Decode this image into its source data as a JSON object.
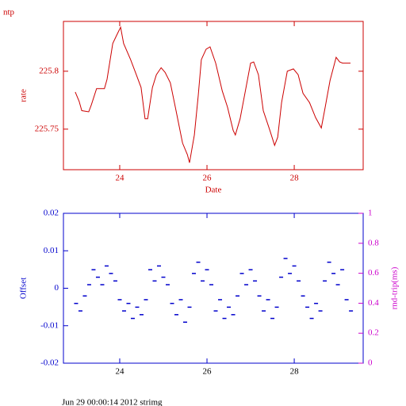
{
  "chart_data": [
    {
      "type": "line",
      "title": "ntp",
      "xlabel": "Date",
      "ylabel": "rate",
      "color": "#cc0000",
      "xlim": [
        22.71,
        29.58
      ],
      "xticks": [
        24,
        26,
        28
      ],
      "ylim": [
        225.715,
        225.843
      ],
      "yticks": [
        225.75,
        225.8
      ],
      "x": [
        22.98,
        23.07,
        23.13,
        23.29,
        23.35,
        23.47,
        23.65,
        23.71,
        23.84,
        23.93,
        24.02,
        24.09,
        24.25,
        24.38,
        24.49,
        24.58,
        24.64,
        24.75,
        24.84,
        24.95,
        25.04,
        25.16,
        25.29,
        25.44,
        25.55,
        25.6,
        25.71,
        25.8,
        25.87,
        25.98,
        26.07,
        26.2,
        26.35,
        26.47,
        26.6,
        26.65,
        26.76,
        26.89,
        27.0,
        27.07,
        27.18,
        27.29,
        27.44,
        27.55,
        27.62,
        27.71,
        27.84,
        27.98,
        28.09,
        28.2,
        28.35,
        28.49,
        28.62,
        28.71,
        28.82,
        28.96,
        29.04,
        29.11,
        29.29
      ],
      "values": [
        225.782,
        225.774,
        225.766,
        225.765,
        225.771,
        225.785,
        225.785,
        225.793,
        225.824,
        225.831,
        225.838,
        225.824,
        225.81,
        225.797,
        225.786,
        225.759,
        225.759,
        225.786,
        225.797,
        225.803,
        225.799,
        225.79,
        225.766,
        225.738,
        225.728,
        225.721,
        225.745,
        225.779,
        225.81,
        225.819,
        225.821,
        225.807,
        225.783,
        225.769,
        225.749,
        225.745,
        225.759,
        225.785,
        225.807,
        225.808,
        225.797,
        225.766,
        225.749,
        225.736,
        225.743,
        225.773,
        225.8,
        225.802,
        225.797,
        225.781,
        225.773,
        225.76,
        225.751,
        225.769,
        225.792,
        225.812,
        225.808,
        225.807,
        225.807
      ]
    },
    {
      "type": "scatter",
      "ylabel": "Offset",
      "y2label": "rnd-trip(ms)",
      "color": "#0000cc",
      "xlim": [
        22.71,
        29.58
      ],
      "xticks": [
        24,
        26,
        28
      ],
      "ylim": [
        -0.02,
        0.02
      ],
      "yticks": [
        -0.02,
        -0.01,
        0,
        0.01,
        0.02
      ],
      "y2lim": [
        0,
        1
      ],
      "y2ticks": [
        0,
        0.2,
        0.4,
        0.6,
        0.8,
        1
      ],
      "x": [
        23.0,
        23.1,
        23.2,
        23.3,
        23.4,
        23.5,
        23.6,
        23.7,
        23.8,
        23.9,
        24.0,
        24.1,
        24.2,
        24.3,
        24.4,
        24.5,
        24.6,
        24.7,
        24.8,
        24.9,
        25.0,
        25.1,
        25.2,
        25.3,
        25.4,
        25.5,
        25.6,
        25.7,
        25.8,
        25.9,
        26.0,
        26.1,
        26.2,
        26.3,
        26.4,
        26.5,
        26.6,
        26.7,
        26.8,
        26.9,
        27.0,
        27.1,
        27.2,
        27.3,
        27.4,
        27.5,
        27.6,
        27.7,
        27.8,
        27.9,
        28.0,
        28.1,
        28.2,
        28.3,
        28.4,
        28.5,
        28.6,
        28.7,
        28.8,
        28.9,
        29.0,
        29.1,
        29.2,
        29.3
      ],
      "values": [
        -0.004,
        -0.006,
        -0.002,
        0.001,
        0.005,
        0.003,
        0.001,
        0.006,
        0.004,
        0.002,
        -0.003,
        -0.006,
        -0.004,
        -0.008,
        -0.005,
        -0.007,
        -0.003,
        0.005,
        0.002,
        0.006,
        0.003,
        0.001,
        -0.004,
        -0.007,
        -0.003,
        -0.009,
        -0.005,
        0.004,
        0.007,
        0.002,
        0.005,
        0.001,
        -0.006,
        -0.003,
        -0.008,
        -0.005,
        -0.007,
        -0.002,
        0.004,
        0.001,
        0.005,
        0.002,
        -0.002,
        -0.006,
        -0.003,
        -0.008,
        -0.005,
        0.003,
        0.008,
        0.004,
        0.006,
        0.002,
        -0.002,
        -0.005,
        -0.008,
        -0.004,
        -0.006,
        0.002,
        0.007,
        0.004,
        0.001,
        0.005,
        -0.003,
        -0.006
      ]
    }
  ],
  "footer": "Jun 29 00:00:14 2012 strimg"
}
